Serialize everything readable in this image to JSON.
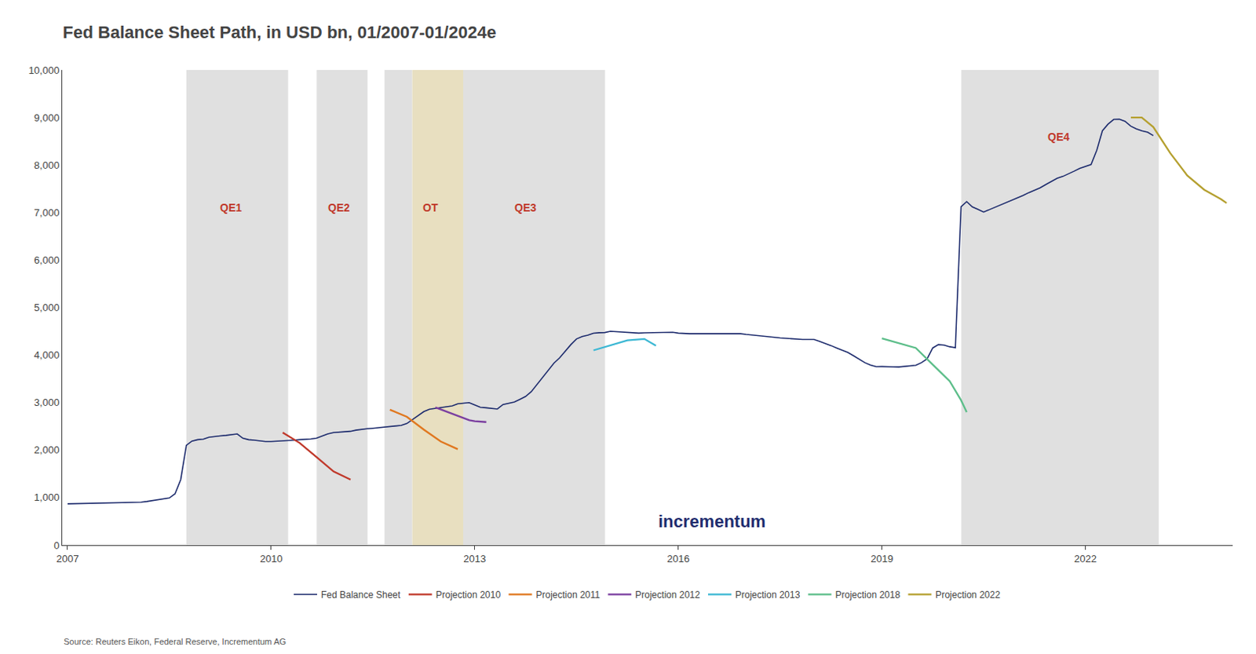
{
  "chart_data": {
    "type": "line",
    "title": "Fed Balance Sheet Path, in USD bn, 01/2007-01/2024e",
    "source": "Source: Reuters Eikon, Federal Reserve, Incrementum AG",
    "xlim": [
      2006.92,
      2024.17
    ],
    "xticks": [
      2007,
      2010,
      2013,
      2016,
      2019,
      2022
    ],
    "ylim": [
      0,
      10000
    ],
    "yticks": [
      0,
      {
        "value": 1000,
        "label": "1,000"
      },
      {
        "value": 2000,
        "label": "2,000"
      },
      {
        "value": 3000,
        "label": "3,000"
      },
      {
        "value": 4000,
        "label": "4,000"
      },
      {
        "value": 5000,
        "label": "5,000"
      },
      {
        "value": 6000,
        "label": "6,000"
      },
      {
        "value": 7000,
        "label": "7,000"
      },
      {
        "value": 8000,
        "label": "8,000"
      },
      {
        "value": 9000,
        "label": "9,000"
      },
      {
        "value": 10000,
        "label": "10,000"
      }
    ],
    "grid": false,
    "legend": "bottom",
    "shaded_regions": [
      {
        "xmin": 2008.75,
        "xmax": 2010.25,
        "color": "#e0e0e0"
      },
      {
        "xmin": 2010.67,
        "xmax": 2011.42,
        "color": "#e0e0e0"
      },
      {
        "xmin": 2011.67,
        "xmax": 2012.08,
        "color": "#e0e0e0"
      },
      {
        "xmin": 2012.08,
        "xmax": 2012.83,
        "color": "#e8dfc0"
      },
      {
        "xmin": 2012.83,
        "xmax": 2014.92,
        "color": "#e0e0e0"
      },
      {
        "xmin": 2020.17,
        "xmax": 2023.08,
        "color": "#e0e0e0"
      }
    ],
    "series": [
      {
        "name": "Fed Balance Sheet",
        "color": "#1f2d6e",
        "x": [
          2007.0,
          2007.083,
          2007.167,
          2007.25,
          2007.333,
          2007.417,
          2007.5,
          2007.583,
          2007.667,
          2007.75,
          2007.833,
          2007.917,
          2008.0,
          2008.083,
          2008.167,
          2008.25,
          2008.333,
          2008.417,
          2008.5,
          2008.583,
          2008.667,
          2008.75,
          2008.833,
          2008.917,
          2009.0,
          2009.083,
          2009.167,
          2009.25,
          2009.333,
          2009.417,
          2009.5,
          2009.583,
          2009.667,
          2009.75,
          2009.833,
          2009.917,
          2010.0,
          2010.083,
          2010.167,
          2010.25,
          2010.333,
          2010.417,
          2010.5,
          2010.583,
          2010.667,
          2010.75,
          2010.833,
          2010.917,
          2011.0,
          2011.083,
          2011.167,
          2011.25,
          2011.333,
          2011.417,
          2011.5,
          2011.583,
          2011.667,
          2011.75,
          2011.833,
          2011.917,
          2012.0,
          2012.083,
          2012.167,
          2012.25,
          2012.333,
          2012.417,
          2012.5,
          2012.583,
          2012.667,
          2012.75,
          2012.833,
          2012.917,
          2013.0,
          2013.083,
          2013.167,
          2013.25,
          2013.333,
          2013.417,
          2013.5,
          2013.583,
          2013.667,
          2013.75,
          2013.833,
          2013.917,
          2014.0,
          2014.083,
          2014.167,
          2014.25,
          2014.333,
          2014.417,
          2014.5,
          2014.583,
          2014.667,
          2014.75,
          2014.833,
          2014.917,
          2015.0,
          2015.083,
          2015.167,
          2015.25,
          2015.333,
          2015.417,
          2015.5,
          2015.583,
          2015.667,
          2015.75,
          2015.833,
          2015.917,
          2016.0,
          2016.083,
          2016.167,
          2016.25,
          2016.333,
          2016.417,
          2016.5,
          2016.583,
          2016.667,
          2016.75,
          2016.833,
          2016.917,
          2017.0,
          2017.083,
          2017.167,
          2017.25,
          2017.333,
          2017.417,
          2017.5,
          2017.583,
          2017.667,
          2017.75,
          2017.833,
          2017.917,
          2018.0,
          2018.083,
          2018.167,
          2018.25,
          2018.333,
          2018.417,
          2018.5,
          2018.583,
          2018.667,
          2018.75,
          2018.833,
          2018.917,
          2019.0,
          2019.083,
          2019.167,
          2019.25,
          2019.333,
          2019.417,
          2019.5,
          2019.583,
          2019.667,
          2019.75,
          2019.833,
          2019.917,
          2020.0,
          2020.083,
          2020.167,
          2020.25,
          2020.333,
          2020.417,
          2020.5,
          2020.583,
          2020.667,
          2020.75,
          2020.833,
          2020.917,
          2021.0,
          2021.083,
          2021.167,
          2021.25,
          2021.333,
          2021.417,
          2021.5,
          2021.583,
          2021.667,
          2021.75,
          2021.833,
          2021.917,
          2022.0,
          2022.083,
          2022.167,
          2022.25,
          2022.333,
          2022.417,
          2022.5,
          2022.583,
          2022.667,
          2022.75,
          2022.833,
          2022.917,
          2023.0
        ],
        "values": [
          870,
          872,
          874,
          876,
          878,
          880,
          882,
          884,
          886,
          888,
          890,
          893,
          896,
          905,
          918,
          935,
          952,
          972,
          993,
          1080,
          1380,
          2100,
          2190,
          2220,
          2230,
          2270,
          2290,
          2300,
          2310,
          2330,
          2340,
          2250,
          2220,
          2210,
          2190,
          2180,
          2180,
          2185,
          2190,
          2200,
          2210,
          2220,
          2225,
          2235,
          2250,
          2300,
          2340,
          2370,
          2375,
          2385,
          2395,
          2420,
          2440,
          2450,
          2460,
          2470,
          2480,
          2490,
          2510,
          2520,
          2560,
          2640,
          2720,
          2810,
          2860,
          2880,
          2895,
          2910,
          2930,
          2975,
          2990,
          3000,
          2950,
          2900,
          2890,
          2875,
          2865,
          2960,
          2980,
          3010,
          3070,
          3130,
          3230,
          3380,
          3520,
          3680,
          3830,
          3940,
          4080,
          4220,
          4340,
          4390,
          4420,
          4460,
          4470,
          4475,
          4500,
          4490,
          4480,
          4470,
          4465,
          4462,
          4468,
          4472,
          4478,
          4480,
          4480,
          4480,
          4462,
          4452,
          4450,
          4450,
          4450,
          4450,
          4450,
          4450,
          4450,
          4450,
          4450,
          4450,
          4435,
          4425,
          4405,
          4395,
          4385,
          4375,
          4362,
          4352,
          4342,
          4332,
          4328,
          4328,
          4330,
          4290,
          4250,
          4200,
          4150,
          4100,
          4055,
          3985,
          3905,
          3840,
          3790,
          3755,
          3758,
          3760,
          3752,
          3750,
          3758,
          3770,
          3785,
          3840,
          3920,
          4150,
          4220,
          4210,
          4175,
          4155,
          7120,
          7230,
          7120,
          7065,
          7010,
          7060,
          7110,
          7160,
          7210,
          7255,
          7310,
          7360,
          7420,
          7470,
          7520,
          7590,
          7660,
          7720,
          7760,
          7810,
          7870,
          7930,
          7970,
          8010,
          8310,
          8720,
          8860,
          8960,
          8965,
          8920,
          8820,
          8760,
          8720,
          8690,
          8620
        ]
      },
      {
        "name": "Projection 2010",
        "color": "#c0392b",
        "x": [
          2010.17,
          2010.42,
          2010.67,
          2010.92,
          2011.17
        ],
        "values": [
          2370,
          2150,
          1850,
          1550,
          1380
        ]
      },
      {
        "name": "Projection 2011",
        "color": "#e07820",
        "x": [
          2011.75,
          2012.0,
          2012.25,
          2012.5,
          2012.75
        ],
        "values": [
          2850,
          2700,
          2430,
          2180,
          2020
        ]
      },
      {
        "name": "Projection 2012",
        "color": "#7b3fa0",
        "x": [
          2012.42,
          2012.67,
          2012.92,
          2013.0,
          2013.17
        ],
        "values": [
          2900,
          2760,
          2630,
          2610,
          2590
        ]
      },
      {
        "name": "Projection 2013",
        "color": "#3db8d4",
        "x": [
          2014.75,
          2015.0,
          2015.25,
          2015.5,
          2015.67
        ],
        "values": [
          4100,
          4200,
          4310,
          4340,
          4200
        ]
      },
      {
        "name": "Projection 2018",
        "color": "#5dbe8a",
        "x": [
          2019.0,
          2019.25,
          2019.5,
          2019.75,
          2020.0,
          2020.167,
          2020.25
        ],
        "values": [
          4350,
          4250,
          4150,
          3800,
          3450,
          3050,
          2800
        ]
      },
      {
        "name": "Projection 2022",
        "color": "#b5a030",
        "x": [
          2022.67,
          2022.83,
          2023.0,
          2023.25,
          2023.5,
          2023.75,
          2024.0,
          2024.08
        ],
        "values": [
          9000,
          9000,
          8800,
          8250,
          7780,
          7480,
          7280,
          7200
        ]
      }
    ],
    "annotations": [
      {
        "text": "QE1",
        "x": 2009.4,
        "y": 7100,
        "color": "#c0392b"
      },
      {
        "text": "QE2",
        "x": 2011.0,
        "y": 7100,
        "color": "#c0392b"
      },
      {
        "text": "OT",
        "x": 2012.35,
        "y": 7100,
        "color": "#c0392b"
      },
      {
        "text": "QE3",
        "x": 2013.75,
        "y": 7100,
        "color": "#c0392b"
      },
      {
        "text": "QE4",
        "x": 2021.6,
        "y": 8600,
        "color": "#c0392b"
      },
      {
        "text": "incrementum",
        "x": 2016.5,
        "y": 500,
        "color": "#1f2d6e"
      }
    ]
  }
}
